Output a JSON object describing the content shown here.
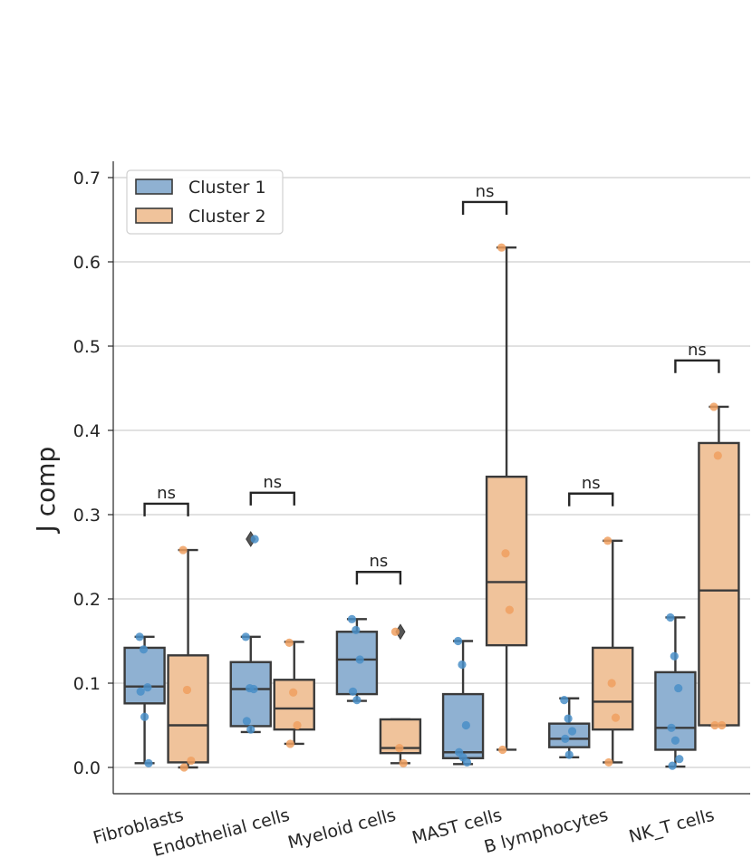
{
  "chart_data": {
    "type": "box",
    "xlabel": "",
    "ylabel": "J comp",
    "ylim": [
      -0.03,
      0.72
    ],
    "yticks": [
      "0.0",
      "0.1",
      "0.2",
      "0.3",
      "0.4",
      "0.5",
      "0.6",
      "0.7"
    ],
    "grid": "horizontal",
    "legend_position": "top-left",
    "categories": [
      "Fibroblasts",
      "Endothelial cells",
      "Myeloid cells",
      "MAST cells",
      "B lymphocytes",
      "NK_T cells"
    ],
    "significance": [
      "ns",
      "ns",
      "ns",
      "ns",
      "ns",
      "ns"
    ],
    "series": [
      {
        "name": "Cluster 1",
        "color": "#8fb1d2",
        "dot_color": "#4a8fc8",
        "boxes": [
          {
            "whislo": 0.005,
            "q1": 0.076,
            "med": 0.096,
            "q3": 0.142,
            "whishi": 0.155,
            "fliers": [],
            "points": [
              0.155,
              0.14,
              0.095,
              0.09,
              0.06,
              0.005
            ]
          },
          {
            "whislo": 0.042,
            "q1": 0.049,
            "med": 0.093,
            "q3": 0.125,
            "whishi": 0.155,
            "fliers": [
              0.271
            ],
            "points": [
              0.155,
              0.094,
              0.093,
              0.055,
              0.045,
              0.271
            ]
          },
          {
            "whislo": 0.079,
            "q1": 0.087,
            "med": 0.128,
            "q3": 0.161,
            "whishi": 0.176,
            "fliers": [],
            "points": [
              0.176,
              0.163,
              0.128,
              0.09,
              0.08
            ]
          },
          {
            "whislo": 0.004,
            "q1": 0.011,
            "med": 0.018,
            "q3": 0.087,
            "whishi": 0.15,
            "fliers": [],
            "points": [
              0.15,
              0.122,
              0.05,
              0.018,
              0.012,
              0.006
            ]
          },
          {
            "whislo": 0.012,
            "q1": 0.024,
            "med": 0.034,
            "q3": 0.052,
            "whishi": 0.082,
            "fliers": [],
            "points": [
              0.08,
              0.058,
              0.043,
              0.034,
              0.015
            ]
          },
          {
            "whislo": 0.001,
            "q1": 0.021,
            "med": 0.047,
            "q3": 0.113,
            "whishi": 0.178,
            "fliers": [],
            "points": [
              0.178,
              0.132,
              0.094,
              0.047,
              0.032,
              0.01,
              0.002
            ]
          }
        ]
      },
      {
        "name": "Cluster 2",
        "color": "#f0c39b",
        "dot_color": "#f0a060",
        "boxes": [
          {
            "whislo": 0.0,
            "q1": 0.006,
            "med": 0.05,
            "q3": 0.133,
            "whishi": 0.258,
            "fliers": [],
            "points": [
              0.258,
              0.092,
              0.008,
              0.0
            ]
          },
          {
            "whislo": 0.028,
            "q1": 0.045,
            "med": 0.07,
            "q3": 0.104,
            "whishi": 0.149,
            "fliers": [],
            "points": [
              0.148,
              0.089,
              0.05,
              0.028
            ]
          },
          {
            "whislo": 0.005,
            "q1": 0.017,
            "med": 0.023,
            "q3": 0.057,
            "whishi": 0.057,
            "fliers": [
              0.161
            ],
            "points": [
              0.161,
              0.023,
              0.005
            ]
          },
          {
            "whislo": 0.021,
            "q1": 0.145,
            "med": 0.22,
            "q3": 0.345,
            "whishi": 0.617,
            "fliers": [],
            "points": [
              0.617,
              0.254,
              0.187,
              0.021
            ]
          },
          {
            "whislo": 0.006,
            "q1": 0.045,
            "med": 0.078,
            "q3": 0.142,
            "whishi": 0.269,
            "fliers": [],
            "points": [
              0.269,
              0.1,
              0.059,
              0.006
            ]
          },
          {
            "whislo": 0.05,
            "q1": 0.05,
            "med": 0.21,
            "q3": 0.385,
            "whishi": 0.428,
            "fliers": [],
            "points": [
              0.428,
              0.37,
              0.05,
              0.05
            ]
          }
        ]
      }
    ],
    "brackets": [
      0.313,
      0.326,
      0.232,
      0.671,
      0.325,
      0.483
    ]
  }
}
